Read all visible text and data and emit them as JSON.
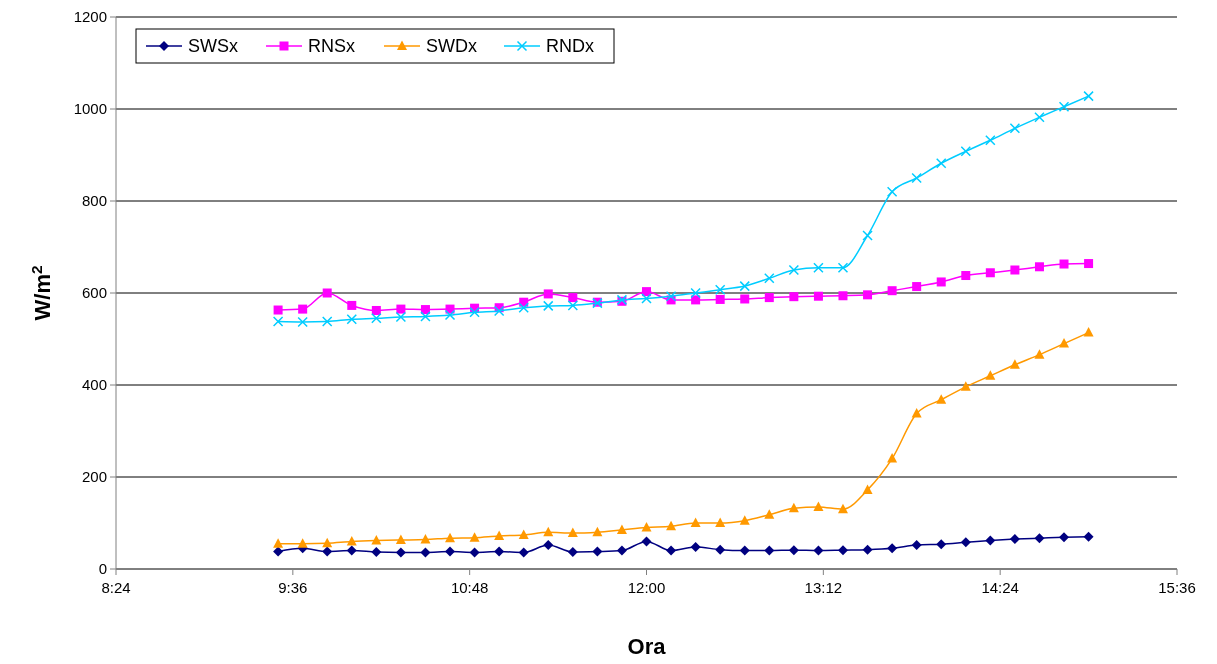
{
  "chart_data": {
    "type": "line",
    "xlabel": "Ora",
    "ylabel": "W/m$^{2}$",
    "x": [
      9.5,
      9.6667,
      9.8333,
      10,
      10.1667,
      10.3333,
      10.5,
      10.6667,
      10.8333,
      11,
      11.1667,
      11.3333,
      11.5,
      11.6667,
      11.8333,
      12,
      12.1667,
      12.3333,
      12.5,
      12.6667,
      12.8333,
      13,
      13.1667,
      13.3333,
      13.5,
      13.6667,
      13.8333,
      14,
      14.1667,
      14.3333,
      14.5,
      14.6667,
      14.8333,
      15
    ],
    "xlim": [
      8.4,
      15.6
    ],
    "xticks": [
      {
        "value": 8.4,
        "label": "8:24"
      },
      {
        "value": 9.6,
        "label": "9:36"
      },
      {
        "value": 10.8,
        "label": "10:48"
      },
      {
        "value": 12,
        "label": "12:00"
      },
      {
        "value": 13.2,
        "label": "13:12"
      },
      {
        "value": 14.4,
        "label": "14:24"
      },
      {
        "value": 15.6,
        "label": "15:36"
      }
    ],
    "ylim": [
      0,
      1200
    ],
    "yticks": [
      0,
      200,
      400,
      600,
      800,
      1000,
      1200
    ],
    "grid": "y",
    "legend": "top left",
    "series": [
      {
        "name": "SWSx",
        "color": "#000080",
        "marker": "diamond",
        "values": [
          38,
          45,
          38,
          40,
          37,
          36,
          36,
          38,
          36,
          38,
          36,
          52,
          37,
          38,
          40,
          60,
          40,
          48,
          42,
          40,
          40,
          41,
          40,
          41,
          42,
          45,
          52,
          54,
          58,
          62,
          65,
          67,
          69,
          70
        ]
      },
      {
        "name": "RNSx",
        "color": "#ff00ff",
        "marker": "square",
        "values": [
          563,
          565,
          600,
          573,
          562,
          565,
          564,
          565,
          567,
          568,
          580,
          598,
          590,
          580,
          582,
          603,
          585,
          585,
          586,
          587,
          590,
          592,
          593,
          594,
          596,
          605,
          614,
          624,
          638,
          644,
          650,
          657,
          663,
          664
        ]
      },
      {
        "name": "SWDx",
        "color": "#ff9900",
        "marker": "triangle",
        "values": [
          55,
          55,
          56,
          60,
          62,
          63,
          64,
          67,
          68,
          72,
          74,
          80,
          78,
          80,
          85,
          90,
          93,
          100,
          100,
          105,
          118,
          132,
          135,
          130,
          172,
          240,
          338,
          368,
          396,
          420,
          444,
          466,
          490,
          514
        ]
      },
      {
        "name": "RNDx",
        "color": "#00ccff",
        "marker": "cross",
        "values": [
          538,
          537,
          538,
          543,
          545,
          548,
          549,
          552,
          558,
          561,
          568,
          572,
          573,
          578,
          585,
          588,
          593,
          600,
          607,
          615,
          632,
          650,
          655,
          655,
          725,
          820,
          850,
          882,
          908,
          932,
          958,
          982,
          1005,
          1028
        ]
      }
    ]
  }
}
